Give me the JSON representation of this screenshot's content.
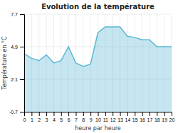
{
  "chart_data": {
    "type": "area",
    "title": "Evolution de la température",
    "xlabel": "heure par heure",
    "ylabel": "Température en °C",
    "x": [
      0,
      1,
      2,
      3,
      4,
      5,
      6,
      7,
      8,
      9,
      10,
      11,
      12,
      13,
      14,
      15,
      16,
      17,
      18,
      19,
      20
    ],
    "values": [
      4.3,
      3.9,
      3.7,
      4.2,
      3.5,
      3.7,
      4.9,
      3.5,
      3.2,
      3.4,
      6.1,
      6.6,
      6.6,
      6.6,
      5.8,
      5.7,
      5.5,
      5.5,
      4.9,
      4.9,
      4.9
    ],
    "color": "#5ab8d4",
    "xlim": [
      0,
      20
    ],
    "xticks": [
      0,
      1,
      2,
      3,
      4,
      5,
      6,
      7,
      8,
      9,
      10,
      11,
      12,
      13,
      14,
      15,
      16,
      17,
      18,
      19,
      20
    ],
    "ylim": [
      -0.7,
      7.7
    ],
    "yticks": [
      -0.7,
      2.1,
      4.9,
      7.7
    ],
    "grid": true
  }
}
